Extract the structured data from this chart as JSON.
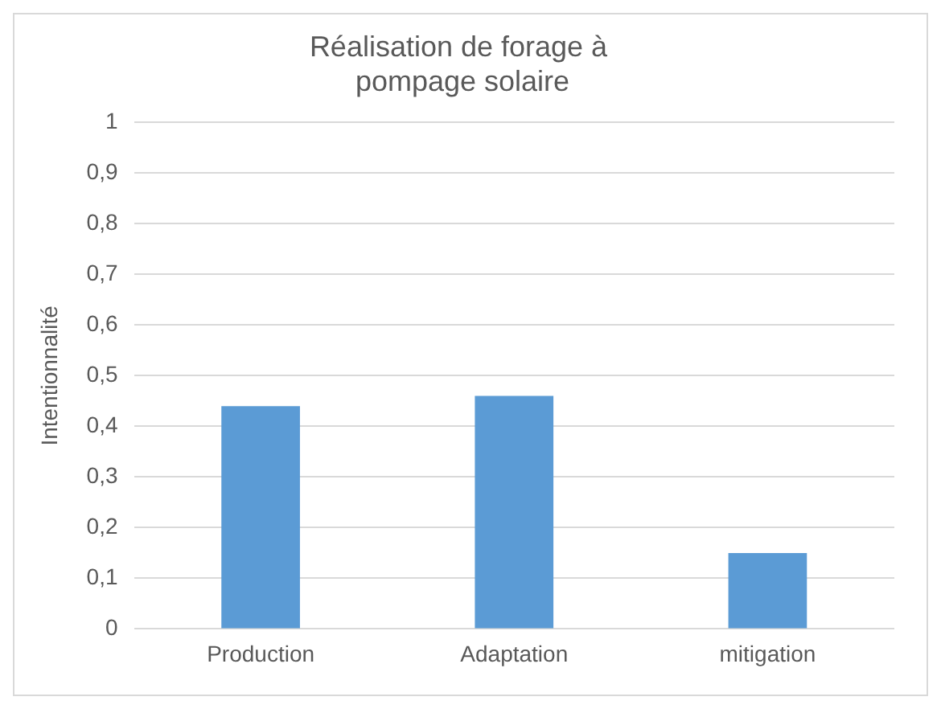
{
  "chart_data": {
    "type": "bar",
    "title": "Réalisation de forage à  pompage solaire",
    "ylabel": "Intentionnalité",
    "categories": [
      "Production",
      "Adaptation",
      "mitigation"
    ],
    "values": [
      0.44,
      0.46,
      0.15
    ],
    "color": "#5b9bd5",
    "ylim": [
      0,
      1
    ],
    "yticks": [
      0,
      {
        "value": 0.1,
        "label": "0,1"
      },
      {
        "value": 0.2,
        "label": "0,2"
      },
      {
        "value": 0.3,
        "label": "0,3"
      },
      {
        "value": 0.4,
        "label": "0,4"
      },
      {
        "value": 0.5,
        "label": "0,5"
      },
      {
        "value": 0.6,
        "label": "0,6"
      },
      {
        "value": 0.7,
        "label": "0,7"
      },
      {
        "value": 0.8,
        "label": "0,8"
      },
      {
        "value": 0.9,
        "label": "0,9"
      },
      1
    ],
    "grid": "y",
    "legend": false
  }
}
